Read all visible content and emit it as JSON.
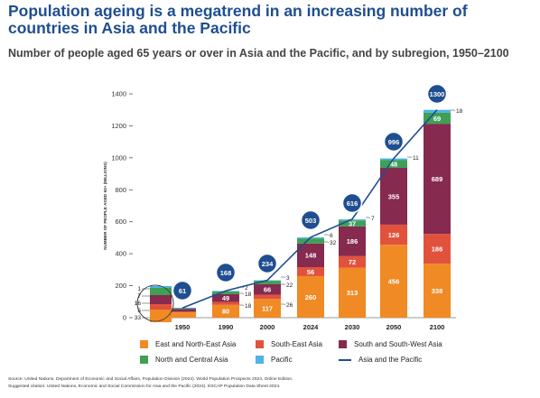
{
  "title": "Population ageing is a megatrend in an increasing number of countries in Asia and the Pacific",
  "subtitle": "Number of people aged 65 years or over in Asia and the Pacific, and by subregion, 1950–2100",
  "chart_data": {
    "type": "bar",
    "stacked": true,
    "ylabel": "NUMBER OF PEOPLE AGED 65+ (MILLIONS)",
    "ylim": [
      0,
      1400
    ],
    "yticks": [
      0,
      200,
      400,
      600,
      800,
      1000,
      1200,
      1400
    ],
    "categories": [
      "1950",
      "1990",
      "2000",
      "2024",
      "2030",
      "2050",
      "2100"
    ],
    "series": [
      {
        "name": "East and North-East Asia",
        "color": "#f08a24",
        "values": [
          33,
          80,
          117,
          260,
          313,
          456,
          338
        ]
      },
      {
        "name": "South-East Asia",
        "color": "#e1523d",
        "values": [
          5,
          18,
          26,
          56,
          72,
          126,
          186
        ]
      },
      {
        "name": "South and South-West Asia",
        "color": "#862a4f",
        "values": [
          16,
          49,
          66,
          148,
          186,
          355,
          689
        ]
      },
      {
        "name": "North and Central Asia",
        "color": "#3ea055",
        "values": [
          7,
          18,
          22,
          32,
          37,
          48,
          69
        ]
      },
      {
        "name": "Pacific",
        "color": "#4eb3e6",
        "values": [
          1,
          2,
          3,
          6,
          7,
          11,
          18
        ]
      }
    ],
    "total_series": {
      "name": "Asia and the Pacific",
      "color": "#1f4e91",
      "values": [
        61,
        168,
        234,
        503,
        616,
        996,
        1300
      ]
    },
    "callout_labels": [
      [
        "1",
        "7",
        "16",
        "5",
        "33"
      ],
      [
        "2",
        "18",
        "",
        "18",
        ""
      ],
      [
        "3",
        "22",
        "",
        "26",
        ""
      ],
      [
        "6",
        "32",
        "",
        "",
        ""
      ],
      [
        "7",
        "",
        "",
        "",
        ""
      ],
      [
        "11",
        "",
        "",
        "",
        ""
      ],
      [
        "18",
        "",
        "",
        "",
        ""
      ]
    ],
    "inner_labels": [
      [
        "",
        "",
        "",
        "",
        ""
      ],
      [
        "80",
        "",
        "49",
        "",
        ""
      ],
      [
        "117",
        "",
        "66",
        "",
        ""
      ],
      [
        "260",
        "56",
        "148",
        "",
        ""
      ],
      [
        "313",
        "72",
        "186",
        "37",
        ""
      ],
      [
        "456",
        "126",
        "355",
        "48",
        ""
      ],
      [
        "338",
        "186",
        "689",
        "69",
        ""
      ]
    ],
    "legend_position": "bottom"
  },
  "source": {
    "line1": "Source: United Nations, Department of Economic and Social Affairs, Population Division (2024). World Population Prospects 2024, Online Edition.",
    "line2": "Suggested citation: United Nations, Economic and Social Commission for Asia and the Pacific (2024). ESCAP Population Data Sheet 2024."
  }
}
